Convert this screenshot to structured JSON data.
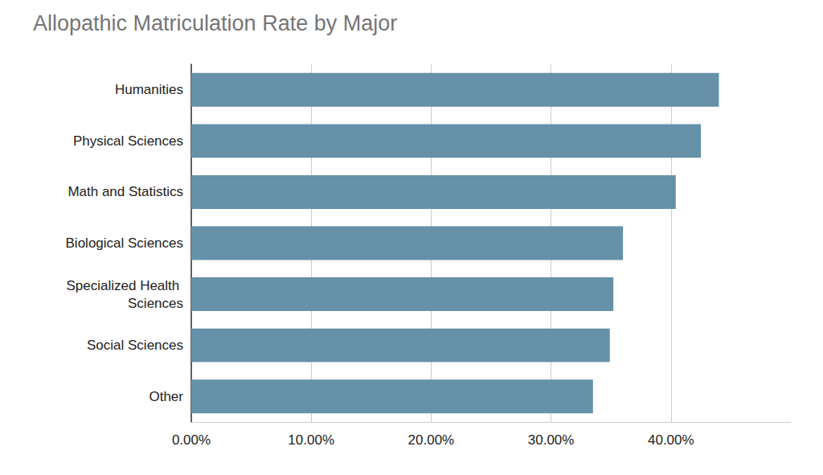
{
  "chart_data": {
    "type": "bar",
    "orientation": "horizontal",
    "title": "Allopathic Matriculation Rate by Major",
    "categories": [
      "Humanities",
      "Physical Sciences",
      "Math and Statistics",
      "Biological Sciences",
      "Specialized Health Sciences",
      "Social Sciences",
      "Other"
    ],
    "values": [
      44.0,
      42.5,
      40.4,
      36.0,
      35.2,
      34.9,
      33.5
    ],
    "color": "#6591a9",
    "xlim": [
      0,
      50
    ],
    "xticks": [
      {
        "value": 0,
        "label": "0.00%"
      },
      {
        "value": 10,
        "label": "10.00%"
      },
      {
        "value": 20,
        "label": "20.00%"
      },
      {
        "value": 30,
        "label": "30.00%"
      },
      {
        "value": 40,
        "label": "40.00%"
      }
    ],
    "grid": true
  }
}
